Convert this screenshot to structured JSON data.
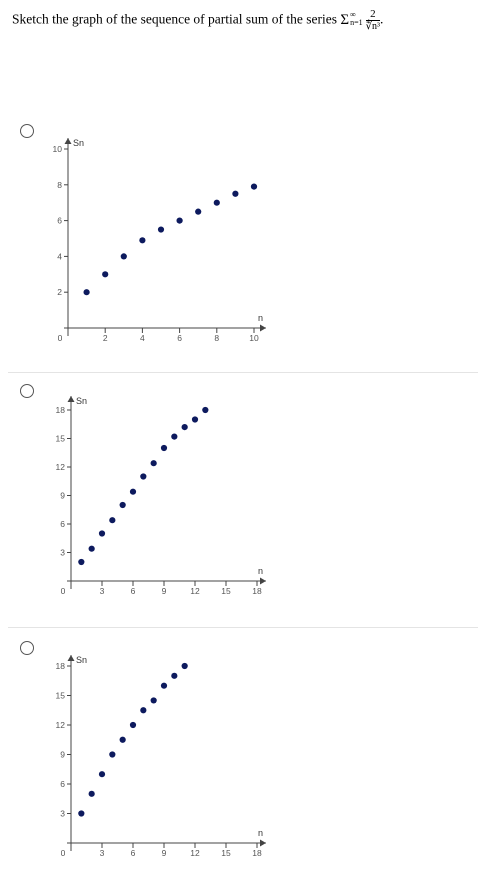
{
  "question": {
    "prefix": "Sketch the graph of the sequence of partial sum of the series ",
    "sigma": "Σ",
    "upper": "∞",
    "lower": "n=1",
    "numerator": "2",
    "denominator": "∜n³",
    "suffix": "."
  },
  "options": [
    {
      "y_label": "Sn",
      "x_label": "n",
      "y_ticks": [
        "2",
        "4",
        "6",
        "8",
        "10"
      ],
      "x_ticks": [
        "0",
        "2",
        "4",
        "6",
        "8",
        "10"
      ],
      "chart_data": {
        "type": "scatter",
        "xlabel": "n",
        "ylabel": "Sn",
        "xlim": [
          0,
          10
        ],
        "ylim": [
          0,
          10
        ],
        "x": [
          1,
          2,
          3,
          4,
          5,
          6,
          7,
          8,
          9,
          10
        ],
        "y": [
          2.0,
          3.0,
          4.0,
          4.9,
          5.5,
          6.0,
          6.5,
          7.0,
          7.5,
          7.9
        ]
      }
    },
    {
      "y_label": "Sn",
      "x_label": "n",
      "y_ticks": [
        "3",
        "6",
        "9",
        "12",
        "15",
        "18"
      ],
      "x_ticks": [
        "0",
        "3",
        "6",
        "9",
        "12",
        "15",
        "18"
      ],
      "chart_data": {
        "type": "scatter",
        "xlabel": "n",
        "ylabel": "Sn",
        "xlim": [
          0,
          18
        ],
        "ylim": [
          0,
          18
        ],
        "x": [
          1,
          2,
          3,
          4,
          5,
          6,
          7,
          8,
          9,
          10,
          11,
          12,
          13
        ],
        "y": [
          2.0,
          3.4,
          5.0,
          6.4,
          8.0,
          9.4,
          11.0,
          12.4,
          14.0,
          15.2,
          16.2,
          17.0,
          18.0
        ]
      }
    },
    {
      "y_label": "Sn",
      "x_label": "n",
      "y_ticks": [
        "3",
        "6",
        "9",
        "12",
        "15",
        "18"
      ],
      "x_ticks": [
        "0",
        "3",
        "6",
        "9",
        "12",
        "15",
        "18"
      ],
      "chart_data": {
        "type": "scatter",
        "xlabel": "n",
        "ylabel": "Sn",
        "xlim": [
          0,
          18
        ],
        "ylim": [
          0,
          18
        ],
        "x": [
          1,
          2,
          3,
          4,
          5,
          6,
          7,
          8,
          9,
          10,
          11
        ],
        "y": [
          3.0,
          5.0,
          7.0,
          9.0,
          10.5,
          12.0,
          13.5,
          14.5,
          16.0,
          17.0,
          18.0
        ]
      }
    }
  ]
}
